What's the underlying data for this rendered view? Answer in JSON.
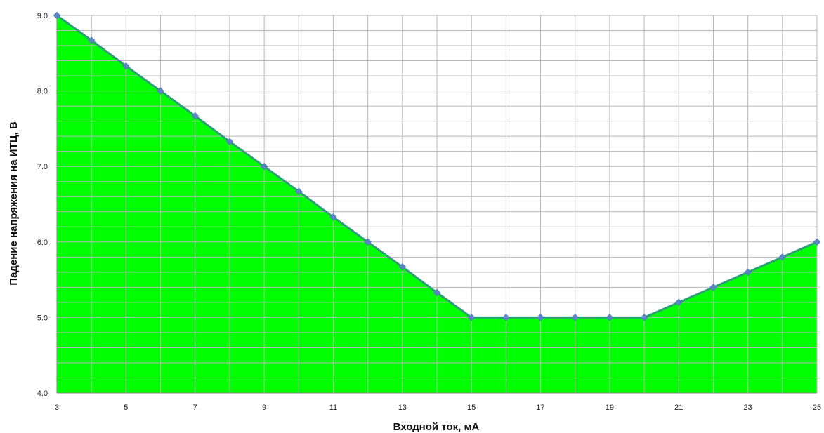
{
  "chart_data": {
    "type": "area",
    "xlabel": "Входной ток, мА",
    "ylabel": "Падение напряжения на ИТЦ, В",
    "xlim": [
      3,
      25
    ],
    "ylim": [
      4.0,
      9.0
    ],
    "x_ticks": [
      "3",
      "5",
      "7",
      "9",
      "11",
      "13",
      "15",
      "17",
      "19",
      "21",
      "23",
      "25"
    ],
    "y_ticks": [
      "4.0",
      "5.0",
      "6.0",
      "7.0",
      "8.0",
      "9.0"
    ],
    "grid": true,
    "legend": "none",
    "series": [
      {
        "x": [
          3,
          4,
          5,
          6,
          7,
          8,
          9,
          10,
          11,
          12,
          13,
          14,
          15,
          16,
          17,
          18,
          19,
          20,
          21,
          22,
          23,
          24,
          25
        ],
        "values": [
          9.0,
          8.67,
          8.33,
          8.0,
          7.67,
          7.33,
          7.0,
          6.67,
          6.33,
          6.0,
          5.67,
          5.33,
          5.0,
          5.0,
          5.0,
          5.0,
          5.0,
          5.0,
          5.2,
          5.4,
          5.6,
          5.8,
          6.0
        ]
      }
    ],
    "colors": {
      "fill": "#00ff00",
      "line": "#2e9e78",
      "marker": "#5b84c4",
      "grid": "#b8b8b8"
    }
  }
}
